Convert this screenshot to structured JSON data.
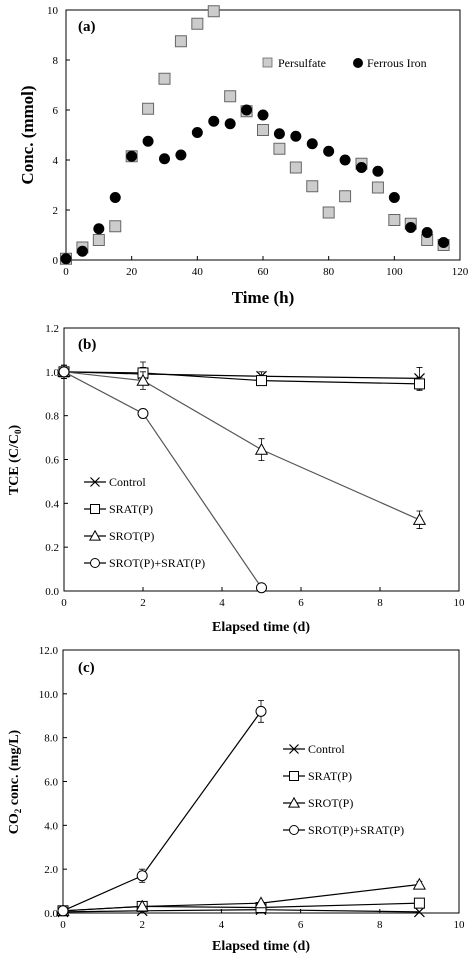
{
  "chart_data": [
    {
      "type": "scatter",
      "panel_label": "(a)",
      "xlabel": "Time (h)",
      "ylabel": "Conc. (mmol)",
      "xlim": [
        0,
        120
      ],
      "ylim": [
        0,
        10
      ],
      "xticks": [
        0,
        20,
        40,
        60,
        80,
        100,
        120
      ],
      "yticks": [
        0,
        2,
        4,
        6,
        8,
        10
      ],
      "xtick_labels": [
        "0",
        "20",
        "40",
        "60",
        "80",
        "100",
        "120"
      ],
      "ytick_labels": [
        "0",
        "2",
        "4",
        "6",
        "8",
        "10"
      ],
      "legend_position": "top-right",
      "series": [
        {
          "name": "Persulfate",
          "marker": "square",
          "fill": "#cccccc",
          "x": [
            0,
            5,
            10,
            15,
            20,
            25,
            30,
            35,
            40,
            45,
            50,
            55,
            60,
            65,
            70,
            75,
            80,
            85,
            90,
            95,
            100,
            105,
            110,
            115
          ],
          "y": [
            0.05,
            0.5,
            0.8,
            1.35,
            4.15,
            6.05,
            7.25,
            8.75,
            9.45,
            9.95,
            6.55,
            5.95,
            5.2,
            4.45,
            3.7,
            2.95,
            1.9,
            2.55,
            3.85,
            2.9,
            1.6,
            1.45,
            0.8,
            0.6
          ]
        },
        {
          "name": "Ferrous Iron",
          "marker": "circle",
          "fill": "#000000",
          "x": [
            0,
            5,
            10,
            15,
            20,
            25,
            30,
            35,
            40,
            45,
            50,
            55,
            60,
            65,
            70,
            75,
            80,
            85,
            90,
            95,
            100,
            105,
            110,
            115
          ],
          "y": [
            0.05,
            0.35,
            1.25,
            2.5,
            4.15,
            4.75,
            4.05,
            4.2,
            5.1,
            5.55,
            5.45,
            6.0,
            5.8,
            5.05,
            4.95,
            4.65,
            4.35,
            4.0,
            3.7,
            3.55,
            2.5,
            1.3,
            1.1,
            0.7
          ]
        }
      ]
    },
    {
      "type": "line",
      "panel_label": "(b)",
      "xlabel": "Elapsed time (d)",
      "ylabel_main": "TCE",
      "ylabel_paren": "C/C",
      "ylabel_sub": "0",
      "xlim": [
        0,
        10
      ],
      "ylim": [
        0,
        1.2
      ],
      "xticks": [
        0,
        2,
        4,
        6,
        8,
        10
      ],
      "yticks": [
        0,
        0.2,
        0.4,
        0.6,
        0.8,
        1.0,
        1.2
      ],
      "xtick_labels": [
        "0",
        "2",
        "4",
        "6",
        "8",
        "10"
      ],
      "ytick_labels": [
        "0.0",
        "0.2",
        "0.4",
        "0.6",
        "0.8",
        "1.0",
        "1.2"
      ],
      "legend_position": "bottom-left",
      "series": [
        {
          "name": "Control",
          "marker": "x",
          "line": "#000000",
          "x": [
            0,
            2,
            5,
            9
          ],
          "y": [
            1.0,
            0.99,
            0.98,
            0.97
          ],
          "err": [
            0.03,
            0.03,
            0.02,
            0.05
          ]
        },
        {
          "name": "SRAT(P)",
          "marker": "square",
          "line": "#000000",
          "x": [
            0,
            2,
            5,
            9
          ],
          "y": [
            1.0,
            0.995,
            0.96,
            0.945
          ],
          "err": [
            0.03,
            0.05,
            0.02,
            0.03
          ]
        },
        {
          "name": "SROT(P)",
          "marker": "triangle",
          "line": "#555555",
          "x": [
            0,
            2,
            5,
            9
          ],
          "y": [
            1.0,
            0.96,
            0.645,
            0.325
          ],
          "err": [
            0.03,
            0.04,
            0.05,
            0.04
          ]
        },
        {
          "name": "SROT(P)+SRAT(P)",
          "marker": "circle",
          "line": "#555555",
          "x": [
            0,
            2,
            5
          ],
          "y": [
            1.0,
            0.81,
            0.015
          ],
          "err": [
            0.03,
            0.02,
            0.01
          ]
        }
      ]
    },
    {
      "type": "line",
      "panel_label": "(c)",
      "xlabel": "Elapsed time (d)",
      "ylabel_pre": "CO",
      "ylabel_sub": "2",
      "ylabel_post": " conc. (mg/L)",
      "xlim": [
        0,
        10
      ],
      "ylim": [
        0,
        12
      ],
      "xticks": [
        0,
        2,
        4,
        6,
        8,
        10
      ],
      "yticks": [
        0,
        2,
        4,
        6,
        8,
        10,
        12
      ],
      "xtick_labels": [
        "0",
        "2",
        "4",
        "6",
        "8",
        "10"
      ],
      "ytick_labels": [
        "0.0",
        "2.0",
        "4.0",
        "6.0",
        "8.0",
        "10.0",
        "12.0"
      ],
      "legend_position": "right",
      "series": [
        {
          "name": "Control",
          "marker": "x",
          "line": "#000000",
          "x": [
            0,
            2,
            5,
            9
          ],
          "y": [
            0.05,
            0.1,
            0.15,
            0.05
          ],
          "err": [
            0,
            0,
            0,
            0
          ]
        },
        {
          "name": "SRAT(P)",
          "marker": "square",
          "line": "#000000",
          "x": [
            0,
            2,
            5,
            9
          ],
          "y": [
            0.1,
            0.3,
            0.25,
            0.45
          ],
          "err": [
            0,
            0,
            0,
            0
          ]
        },
        {
          "name": "SROT(P)",
          "marker": "triangle",
          "line": "#000000",
          "x": [
            0,
            2,
            5,
            9
          ],
          "y": [
            0.1,
            0.3,
            0.45,
            1.3
          ],
          "err": [
            0,
            0,
            0,
            0.15
          ]
        },
        {
          "name": "SROT(P)+SRAT(P)",
          "marker": "circle",
          "line": "#000000",
          "x": [
            0,
            2,
            5
          ],
          "y": [
            0.1,
            1.7,
            9.2
          ],
          "err": [
            0,
            0.3,
            0.5
          ]
        }
      ]
    }
  ]
}
